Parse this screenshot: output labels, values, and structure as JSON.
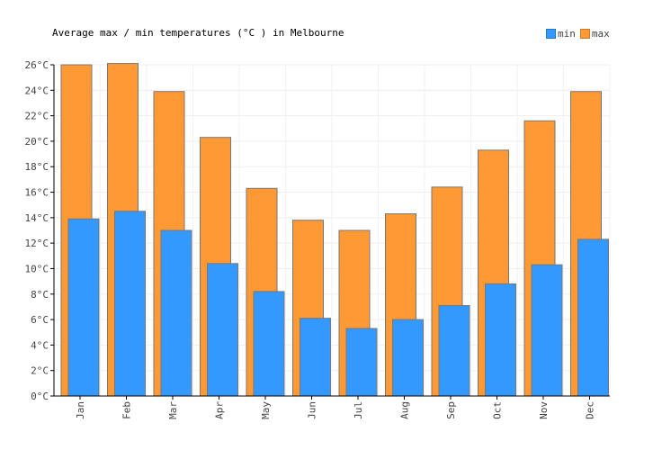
{
  "chart_data": {
    "type": "bar",
    "title": "Average max / min temperatures (°C ) in Melbourne",
    "categories": [
      "Jan",
      "Feb",
      "Mar",
      "Apr",
      "May",
      "Jun",
      "Jul",
      "Aug",
      "Sep",
      "Oct",
      "Nov",
      "Dec"
    ],
    "series": [
      {
        "name": "min",
        "color": "#3399ff",
        "values": [
          13.9,
          14.5,
          13.0,
          10.4,
          8.2,
          6.1,
          5.3,
          6.0,
          7.1,
          8.8,
          10.3,
          12.3
        ]
      },
      {
        "name": "max",
        "color": "#ff9933",
        "values": [
          26.0,
          26.1,
          23.9,
          20.3,
          16.3,
          13.8,
          13.0,
          14.3,
          16.4,
          19.3,
          21.6,
          23.9
        ]
      }
    ],
    "ylim": [
      0,
      26
    ],
    "yticks": [
      "0°C",
      "2°C",
      "4°C",
      "6°C",
      "8°C",
      "10°C",
      "12°C",
      "14°C",
      "16°C",
      "18°C",
      "20°C",
      "22°C",
      "24°C",
      "26°C"
    ],
    "grid": true,
    "legend": "top-right"
  }
}
